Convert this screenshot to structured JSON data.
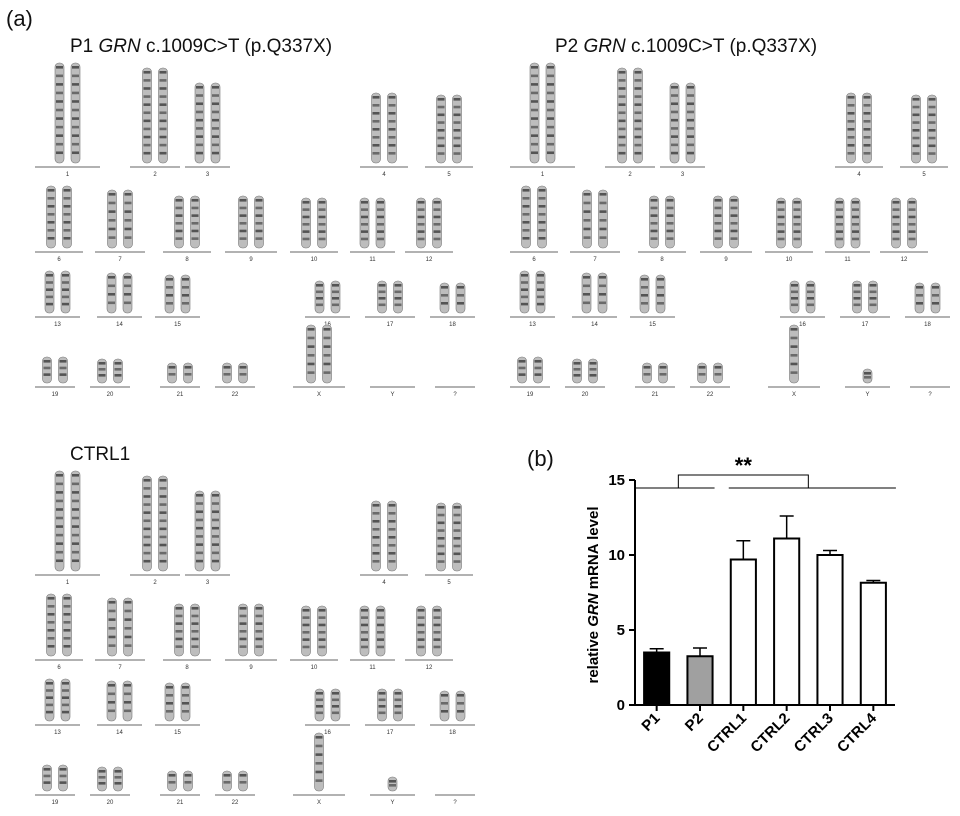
{
  "panel_a": {
    "letter": "(a)",
    "karyotypes": [
      {
        "id": "p1",
        "title_prefix": "P1 ",
        "gene": "GRN",
        "title_suffix": " c.1009C>T (p.Q337X)",
        "sex": "XX"
      },
      {
        "id": "p2",
        "title_prefix": "P2 ",
        "gene": "GRN",
        "title_suffix": " c.1009C>T (p.Q337X)",
        "sex": "XY"
      },
      {
        "id": "ctrl1",
        "title_prefix": "CTRL1",
        "gene": "",
        "title_suffix": "",
        "sex": "XY"
      }
    ],
    "chromosome_labels": [
      "1",
      "2",
      "3",
      "4",
      "5",
      "6",
      "7",
      "8",
      "9",
      "10",
      "11",
      "12",
      "13",
      "14",
      "15",
      "16",
      "17",
      "18",
      "19",
      "20",
      "21",
      "22",
      "X",
      "Y",
      "?"
    ]
  },
  "panel_b": {
    "letter": "(b)",
    "significance": "**",
    "colors": {
      "P1": "#000000",
      "P2": "#a0a0a0",
      "CTRL": "#ffffff",
      "stroke": "#000000"
    }
  },
  "chart_data": {
    "type": "bar",
    "categories": [
      "P1",
      "P2",
      "CTRL1",
      "CTRL2",
      "CTRL3",
      "CTRL4"
    ],
    "values": [
      3.5,
      3.25,
      9.7,
      11.1,
      10.0,
      8.15
    ],
    "error": [
      0.25,
      0.55,
      1.25,
      1.5,
      0.3,
      0.15
    ],
    "ylabel_prefix": "relative ",
    "ylabel_gene": "GRN",
    "ylabel_suffix": " mRNA level",
    "ylim": [
      0,
      15
    ],
    "yticks": [
      "0",
      "5",
      "10",
      "15"
    ],
    "annotation": "**"
  }
}
